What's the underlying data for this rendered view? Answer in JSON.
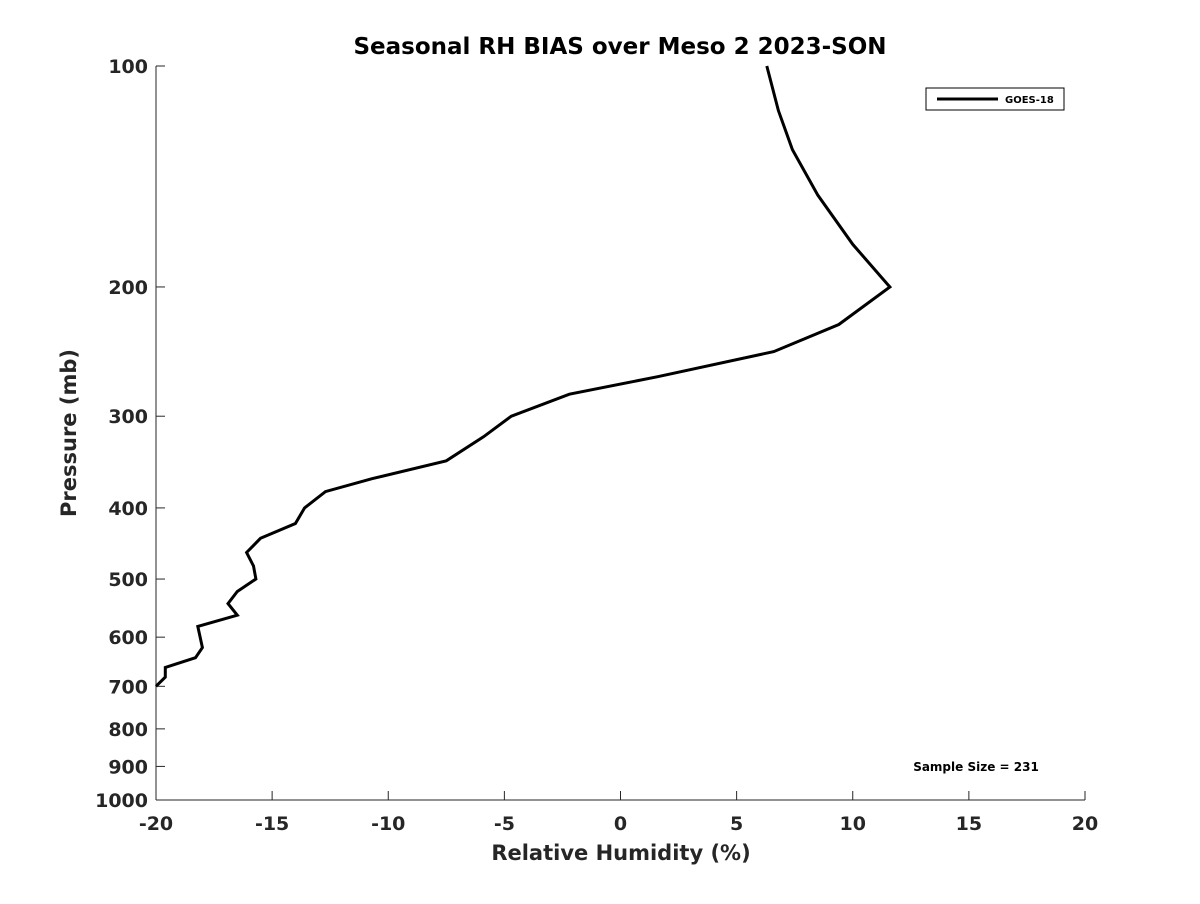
{
  "chart_data": {
    "type": "line",
    "title": "Seasonal RH BIAS over Meso 2  2023-SON",
    "xlabel": "Relative Humidity (%)",
    "ylabel": "Pressure (mb)",
    "xlim": [
      -20,
      20
    ],
    "ylim": [
      100,
      1000
    ],
    "yscale": "log",
    "y_reversed": true,
    "x_ticks": [
      -20,
      -15,
      -10,
      -5,
      0,
      5,
      10,
      15,
      20
    ],
    "y_ticks": [
      100,
      200,
      300,
      400,
      500,
      600,
      700,
      800,
      900,
      1000
    ],
    "grid": false,
    "legend_position": "top-right",
    "series": [
      {
        "name": "GOES-18",
        "color": "#000000",
        "x": [
          6.3,
          6.8,
          7.4,
          8.5,
          10.0,
          11.6,
          9.4,
          6.6,
          1.6,
          -2.2,
          -4.7,
          -5.9,
          -7.5,
          -10.7,
          -12.7,
          -13.6,
          -14.0,
          -15.5,
          -16.1,
          -15.8,
          -15.7,
          -16.5,
          -16.9,
          -16.5,
          -18.2,
          -18.0,
          -18.3,
          -19.6,
          -19.6,
          -20.0
        ],
        "y": [
          100,
          115,
          130,
          150,
          175,
          200,
          225,
          245,
          265,
          280,
          300,
          320,
          345,
          365,
          380,
          400,
          420,
          440,
          460,
          480,
          500,
          520,
          540,
          560,
          580,
          620,
          640,
          660,
          680,
          700
        ]
      }
    ],
    "annotations": [
      {
        "text": "Sample Size = 231"
      }
    ]
  }
}
